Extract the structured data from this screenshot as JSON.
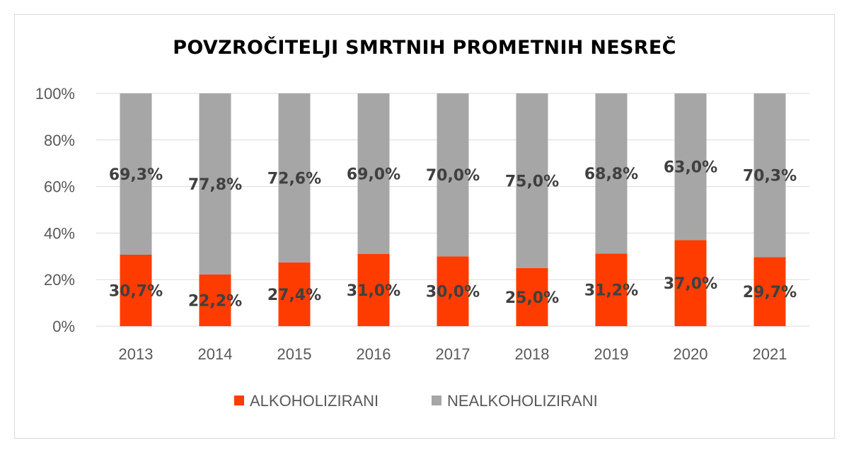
{
  "chart_data": {
    "type": "bar",
    "stacked": true,
    "title": "POVZROČITELJI SMRTNIH PROMETNIH NESREČ",
    "categories": [
      "2013",
      "2014",
      "2015",
      "2016",
      "2017",
      "2018",
      "2019",
      "2020",
      "2021"
    ],
    "series": [
      {
        "name": "ALKOHOLIZIRANI",
        "color": "#ff3c00",
        "values": [
          30.7,
          22.2,
          27.4,
          31.0,
          30.0,
          25.0,
          31.2,
          37.0,
          29.7
        ],
        "labels": [
          "30,7%",
          "22,2%",
          "27,4%",
          "31,0%",
          "30,0%",
          "25,0%",
          "31,2%",
          "37,0%",
          "29,7%"
        ]
      },
      {
        "name": "NEALKOHOLIZIRANI",
        "color": "#a6a6a6",
        "values": [
          69.3,
          77.8,
          72.6,
          69.0,
          70.0,
          75.0,
          68.8,
          63.0,
          70.3
        ],
        "labels": [
          "69,3%",
          "77,8%",
          "72,6%",
          "69,0%",
          "70,0%",
          "75,0%",
          "68,8%",
          "63,0%",
          "70,3%"
        ]
      }
    ],
    "ylim": [
      0,
      100
    ],
    "yticks": [
      0,
      20,
      40,
      60,
      80,
      100
    ],
    "ytick_labels": [
      "0%",
      "20%",
      "40%",
      "60%",
      "80%",
      "100%"
    ],
    "xlabel": "",
    "ylabel": "",
    "grid": true,
    "grid_color": "#d9d9d9",
    "legend_position": "bottom"
  }
}
